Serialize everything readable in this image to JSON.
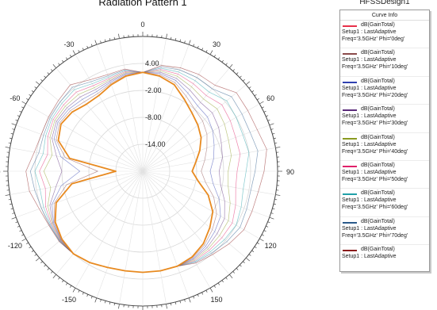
{
  "header": {
    "title": "Radiation Pattern 1",
    "design_name": "HFSSDesign1"
  },
  "legend": {
    "header": "Curve Info",
    "entries": [
      {
        "name": "dB(GainTotal)",
        "setup": "Setup1 : LastAdaptive",
        "freq": "Freq='3.5GHz' Phi='0deg'",
        "color": "#e8304a"
      },
      {
        "name": "dB(GainTotal)",
        "setup": "Setup1 : LastAdaptive",
        "freq": "Freq='3.5GHz' Phi='10deg'",
        "color": "#8a4a4a"
      },
      {
        "name": "dB(GainTotal)",
        "setup": "Setup1 : LastAdaptive",
        "freq": "Freq='3.5GHz' Phi='20deg'",
        "color": "#3040b0"
      },
      {
        "name": "dB(GainTotal)",
        "setup": "Setup1 : LastAdaptive",
        "freq": "Freq='3.5GHz' Phi='30deg'",
        "color": "#5a2a7a"
      },
      {
        "name": "dB(GainTotal)",
        "setup": "Setup1 : LastAdaptive",
        "freq": "Freq='3.5GHz' Phi='40deg'",
        "color": "#8a9a20"
      },
      {
        "name": "dB(GainTotal)",
        "setup": "Setup1 : LastAdaptive",
        "freq": "Freq='3.5GHz' Phi='50deg'",
        "color": "#e0206a"
      },
      {
        "name": "dB(GainTotal)",
        "setup": "Setup1 : LastAdaptive",
        "freq": "Freq='3.5GHz' Phi='60deg'",
        "color": "#20a0a8"
      },
      {
        "name": "dB(GainTotal)",
        "setup": "Setup1 : LastAdaptive",
        "freq": "Freq='3.5GHz' Phi='70deg'",
        "color": "#2a5a8a"
      },
      {
        "name": "dB(GainTotal)",
        "setup": "Setup1 : LastAdaptive",
        "freq": "",
        "color": "#8a1a1a"
      }
    ]
  },
  "chart_data": {
    "type": "polar",
    "title": "Radiation Pattern 1",
    "r_range": [
      -20,
      10
    ],
    "radial_ticks": [
      4.0,
      -2.0,
      -8.0,
      -14.0
    ],
    "radial_tick_labels": [
      "4.00",
      "-2.00",
      "-8.00",
      "-14.00"
    ],
    "angle_ticks": [
      0,
      30,
      60,
      90,
      120,
      150,
      180,
      -150,
      -120,
      -90,
      -60,
      -30
    ],
    "angle_labels_shown": [
      "0",
      "30",
      "60",
      "90",
      "120",
      "150",
      "-150",
      "-120",
      "-90",
      "-60",
      "-30"
    ],
    "grid": true,
    "legend_placement": "right",
    "theta_deg": [
      -180,
      -170,
      -160,
      -150,
      -140,
      -130,
      -120,
      -110,
      -100,
      -90,
      -80,
      -70,
      -60,
      -50,
      -40,
      -30,
      -20,
      -10,
      0,
      10,
      20,
      30,
      40,
      50,
      60,
      70,
      80,
      90,
      100,
      110,
      120,
      130,
      140,
      150,
      160,
      170,
      180
    ],
    "series": [
      {
        "color": "#e8304a",
        "r": [
          2.5,
          2.5,
          2.8,
          3.5,
          4.0,
          3.5,
          2.5,
          0.5,
          -4.0,
          -14.0,
          -3.5,
          0.0,
          1.0,
          0.5,
          -0.5,
          -0.5,
          0.5,
          1.5,
          2.0,
          1.5,
          0.5,
          -1.5,
          -3.0,
          -4.0,
          -5.0,
          -6.5,
          -8.0,
          -9.0,
          -7.5,
          -4.5,
          -2.0,
          -0.5,
          1.0,
          2.0,
          2.5,
          2.5,
          2.5
        ]
      },
      {
        "color": "#8a4a4a",
        "r": [
          2.5,
          2.5,
          2.8,
          3.5,
          4.0,
          3.6,
          2.7,
          1.0,
          -2.8,
          -10.0,
          -2.5,
          0.5,
          1.4,
          1.0,
          0.2,
          0.0,
          0.8,
          1.7,
          2.0,
          1.8,
          1.0,
          -0.7,
          -2.0,
          -2.6,
          -3.5,
          -4.8,
          -6.0,
          -7.0,
          -5.8,
          -3.2,
          -1.0,
          0.2,
          1.4,
          2.2,
          2.5,
          2.5,
          2.5
        ]
      },
      {
        "color": "#3040b0",
        "r": [
          2.5,
          2.5,
          2.8,
          3.5,
          4.0,
          3.7,
          2.9,
          1.5,
          -1.6,
          -6.0,
          -1.5,
          1.0,
          1.8,
          1.5,
          0.9,
          0.5,
          1.1,
          1.9,
          2.0,
          2.1,
          1.5,
          0.1,
          -1.0,
          -1.2,
          -2.0,
          -3.1,
          -4.0,
          -5.0,
          -4.1,
          -1.9,
          0.0,
          0.9,
          1.8,
          2.4,
          2.5,
          2.5,
          2.5
        ]
      },
      {
        "color": "#5a2a7a",
        "r": [
          2.5,
          2.5,
          2.8,
          3.5,
          4.0,
          3.8,
          3.1,
          2.0,
          -0.4,
          -2.0,
          -0.5,
          1.5,
          2.2,
          2.0,
          1.6,
          1.0,
          1.4,
          2.1,
          2.0,
          2.4,
          2.0,
          0.9,
          0.0,
          0.2,
          -0.5,
          -1.4,
          -2.0,
          -3.0,
          -2.4,
          -0.6,
          1.0,
          1.6,
          2.2,
          2.6,
          2.5,
          2.5,
          2.5
        ]
      },
      {
        "color": "#8a9a20",
        "r": [
          2.5,
          2.5,
          2.8,
          3.5,
          4.0,
          3.9,
          3.3,
          2.5,
          0.8,
          2.0,
          0.5,
          2.0,
          2.6,
          2.5,
          2.3,
          1.5,
          1.7,
          2.3,
          2.0,
          2.7,
          2.5,
          1.7,
          1.0,
          1.6,
          1.0,
          0.3,
          0.0,
          -1.0,
          -0.7,
          0.7,
          2.0,
          2.3,
          2.6,
          2.8,
          2.5,
          2.5,
          2.5
        ]
      },
      {
        "color": "#e0206a",
        "r": [
          2.5,
          2.5,
          2.8,
          3.5,
          4.0,
          4.0,
          3.5,
          3.0,
          2.0,
          3.0,
          1.5,
          2.5,
          3.0,
          3.0,
          3.0,
          2.0,
          2.0,
          2.5,
          2.0,
          3.0,
          3.0,
          2.5,
          2.0,
          3.0,
          2.5,
          2.0,
          2.0,
          1.0,
          1.0,
          2.0,
          3.0,
          3.0,
          3.0,
          3.0,
          2.5,
          2.5,
          2.5
        ]
      },
      {
        "color": "#20a0a8",
        "r": [
          2.5,
          2.5,
          2.8,
          3.5,
          4.0,
          4.1,
          3.7,
          3.5,
          3.2,
          4.0,
          2.5,
          3.0,
          3.4,
          3.5,
          3.7,
          2.5,
          2.3,
          2.7,
          2.0,
          3.3,
          3.5,
          3.3,
          3.0,
          4.4,
          4.0,
          3.7,
          4.0,
          3.0,
          2.7,
          3.3,
          4.0,
          3.7,
          3.4,
          3.2,
          2.5,
          2.5,
          2.5
        ]
      },
      {
        "color": "#2a5a8a",
        "r": [
          2.5,
          2.5,
          2.8,
          3.5,
          4.0,
          4.2,
          3.9,
          4.0,
          4.4,
          5.0,
          3.5,
          3.5,
          3.8,
          4.0,
          4.4,
          3.0,
          2.6,
          2.9,
          2.0,
          3.6,
          4.0,
          4.1,
          4.0,
          5.8,
          5.5,
          5.4,
          6.0,
          5.0,
          4.4,
          4.6,
          5.0,
          4.4,
          3.8,
          3.4,
          2.5,
          2.5,
          2.5
        ]
      },
      {
        "color": "#8a1a1a",
        "r": [
          2.5,
          2.5,
          2.8,
          3.5,
          4.0,
          4.3,
          4.1,
          4.5,
          5.6,
          6.0,
          4.5,
          4.0,
          4.2,
          4.5,
          5.1,
          3.5,
          2.9,
          3.1,
          2.0,
          3.9,
          4.5,
          4.9,
          5.0,
          7.2,
          7.0,
          7.1,
          8.0,
          7.0,
          6.1,
          5.9,
          6.0,
          5.1,
          4.2,
          3.6,
          2.5,
          2.5,
          2.5
        ]
      },
      {
        "color": "#e88a20",
        "r": [
          2.5,
          2.5,
          2.8,
          3.5,
          4.0,
          3.5,
          2.5,
          0.5,
          -4.0,
          -14.0,
          -3.5,
          0.0,
          1.0,
          0.5,
          -0.5,
          -0.5,
          0.5,
          1.5,
          2.0,
          1.5,
          0.5,
          -1.5,
          -3.0,
          -4.0,
          -5.0,
          -6.5,
          -8.0,
          -9.0,
          -7.5,
          -4.5,
          -2.0,
          -0.5,
          1.0,
          2.0,
          2.5,
          2.5,
          2.5
        ]
      }
    ]
  }
}
